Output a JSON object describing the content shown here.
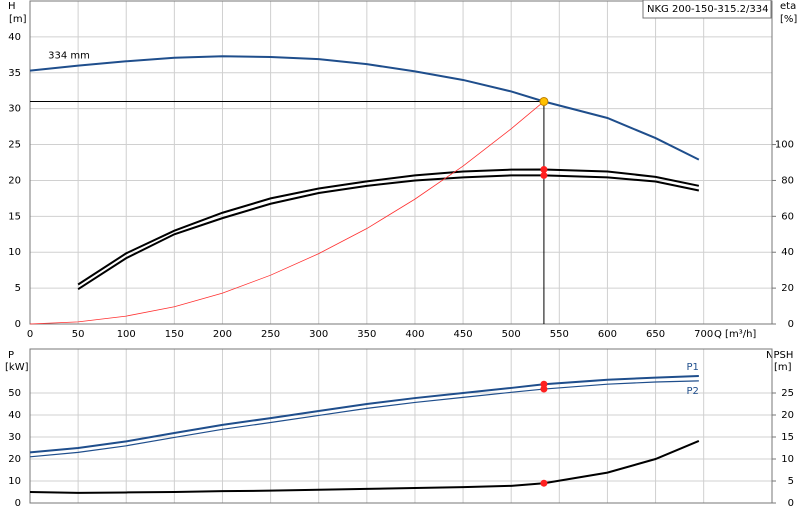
{
  "chart_data": [
    {
      "type": "line",
      "title": "NKG 200-150-315.2/334",
      "ylabel": "H",
      "yunit": "[m]",
      "y2label": "eta",
      "y2unit": "[%]",
      "xlabel": "Q [m³/h]",
      "x": [
        0,
        50,
        100,
        150,
        200,
        250,
        300,
        350,
        400,
        450,
        500,
        534,
        600,
        650,
        695
      ],
      "xlim": [
        0,
        771
      ],
      "xticks": [
        0,
        50,
        100,
        150,
        200,
        250,
        300,
        350,
        400,
        450,
        500,
        550,
        600,
        650,
        700
      ],
      "ylim": [
        0,
        45
      ],
      "yticks": [
        0,
        5,
        10,
        15,
        20,
        25,
        30,
        35,
        40
      ],
      "y2lim": [
        0,
        180
      ],
      "y2ticks": [
        0,
        20,
        40,
        60,
        80,
        100
      ],
      "grid": true,
      "duty_point": {
        "x": 534,
        "y": 31
      },
      "series": [
        {
          "name": "334 mm",
          "color": "#1f4e8c",
          "width": 2,
          "values": [
            35.3,
            36,
            36.6,
            37.1,
            37.3,
            37.2,
            36.9,
            36.2,
            35.2,
            34,
            32.4,
            31,
            28.7,
            25.9,
            22.9
          ]
        },
        {
          "color": "#000000",
          "width": 2,
          "axis": "y2",
          "duty_marker": true,
          "values": [
            null,
            22,
            39.4,
            52,
            62,
            70,
            75.5,
            79.5,
            82.8,
            85,
            86,
            86.1,
            85,
            82,
            77
          ]
        },
        {
          "color": "#000000",
          "width": 2,
          "axis": "y2",
          "duty_marker": true,
          "values": [
            null,
            19.4,
            36.7,
            50,
            59,
            67,
            73,
            77,
            80,
            81.7,
            82.8,
            82.8,
            81.7,
            79.4,
            74.4
          ]
        },
        {
          "color": "#ff3030",
          "width": 0.8,
          "values": [
            0,
            0.3,
            1.1,
            2.4,
            4.3,
            6.8,
            9.8,
            13.3,
            17.4,
            22,
            27.2,
            31,
            null,
            null,
            null
          ]
        }
      ]
    },
    {
      "type": "line",
      "ylabel": "P",
      "yunit": "[kW]",
      "y2label": "NPSH",
      "y2unit": "[m]",
      "x": [
        0,
        50,
        100,
        150,
        200,
        250,
        300,
        350,
        400,
        450,
        500,
        534,
        600,
        650,
        695
      ],
      "xlim": [
        0,
        771
      ],
      "ylim": [
        0,
        70
      ],
      "yticks": [
        0,
        10,
        20,
        30,
        40,
        50
      ],
      "y2lim": [
        0,
        35
      ],
      "y2ticks": [
        0,
        5,
        10,
        15,
        20,
        25
      ],
      "grid": true,
      "series": [
        {
          "name": "P1",
          "color": "#1f4e8c",
          "width": 2,
          "duty_marker": true,
          "values": [
            23,
            25,
            28,
            31.8,
            35.5,
            38.6,
            41.8,
            45,
            47.7,
            50,
            52.3,
            54,
            56,
            57,
            57.7
          ]
        },
        {
          "name": "P2",
          "color": "#1f4e8c",
          "width": 1.2,
          "duty_marker": true,
          "values": [
            21,
            23,
            26,
            29.8,
            33.5,
            36.6,
            39.8,
            43,
            45.7,
            48,
            50.3,
            51.8,
            54,
            55,
            55.5
          ]
        },
        {
          "color": "#000000",
          "width": 2,
          "axis": "y2",
          "duty_marker": true,
          "values": [
            2.5,
            2.3,
            2.4,
            2.5,
            2.7,
            2.8,
            3,
            3.2,
            3.4,
            3.6,
            3.9,
            4.5,
            6.9,
            10,
            14.1
          ]
        }
      ]
    }
  ]
}
